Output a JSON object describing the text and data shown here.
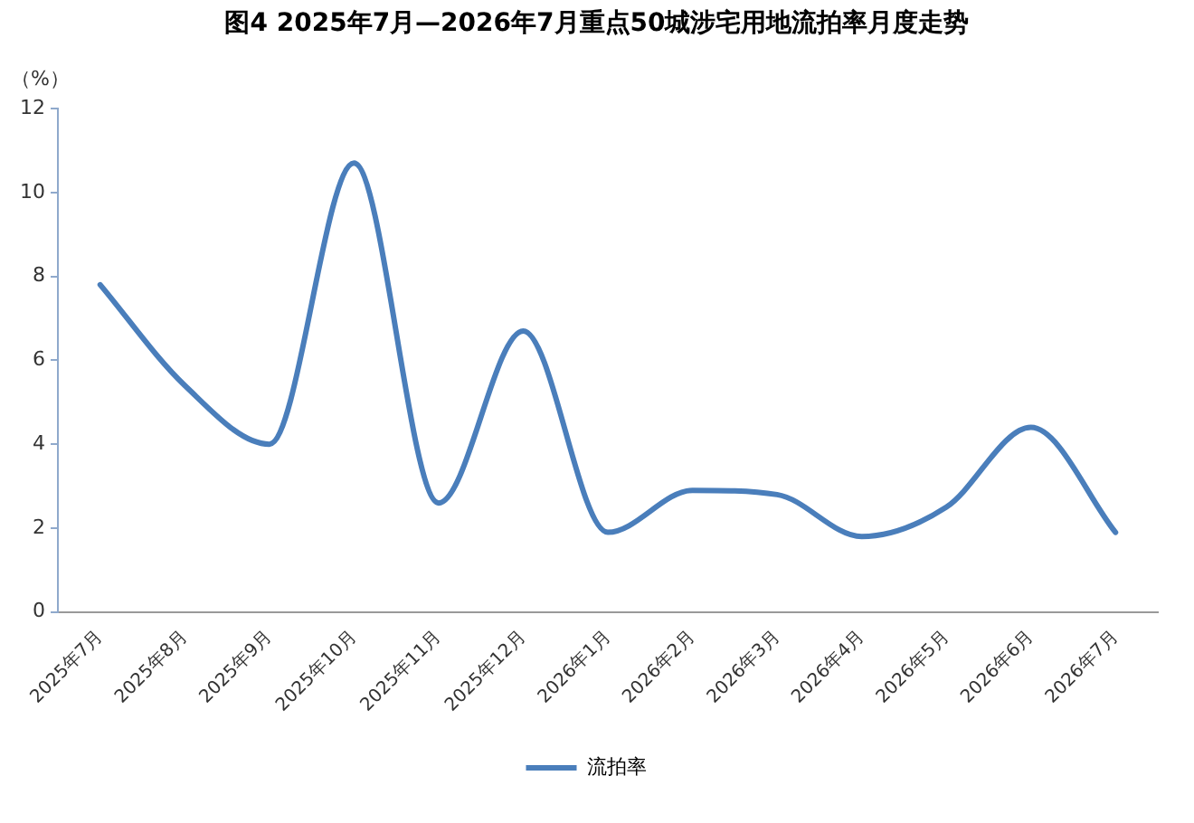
{
  "chart_data": {
    "type": "line",
    "title": "图4 2025年7月—2026年7月重点50城涉宅用地流拍率月度走势",
    "ylabel": "（%）",
    "categories": [
      "2025年7月",
      "2025年8月",
      "2025年9月",
      "2025年10月",
      "2025年11月",
      "2025年12月",
      "2026年1月",
      "2026年2月",
      "2026年3月",
      "2026年4月",
      "2026年5月",
      "2026年6月",
      "2026年7月"
    ],
    "series": [
      {
        "name": "流拍率",
        "color": "#4a7ebb",
        "values": [
          7.8,
          5.4,
          4.0,
          10.7,
          2.6,
          6.7,
          1.9,
          2.9,
          2.8,
          1.8,
          2.5,
          4.4,
          1.9
        ]
      }
    ],
    "ylim": [
      0,
      12
    ],
    "yticks": [
      0,
      2,
      4,
      6,
      8,
      10,
      12
    ],
    "grid": false,
    "legend": "bottom",
    "marker": "none",
    "line_style": "solid"
  }
}
